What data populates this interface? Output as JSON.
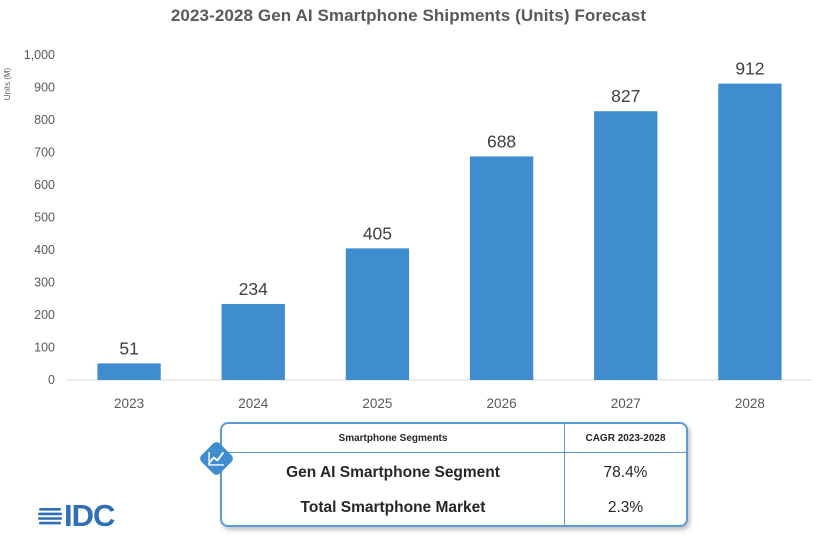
{
  "chart_data": {
    "type": "bar",
    "title": "2023-2028 Gen AI Smartphone Shipments (Units) Forecast",
    "ylabel": "Units (M)",
    "xlabel": "",
    "categories": [
      "2023",
      "2024",
      "2025",
      "2026",
      "2027",
      "2028"
    ],
    "values": [
      51,
      234,
      405,
      688,
      827,
      912
    ],
    "data_labels": [
      "51",
      "234",
      "405",
      "688",
      "827",
      "912"
    ],
    "ylim": [
      0,
      1000
    ],
    "yticks": [
      "0",
      "100",
      "200",
      "300",
      "400",
      "500",
      "600",
      "700",
      "800",
      "900",
      "1,000"
    ],
    "bar_color": "#3f8dcf",
    "grid": false,
    "legend": "none"
  },
  "table": {
    "header_segment": "Smartphone Segments",
    "header_cagr": "CAGR 2023-2028",
    "rows": [
      {
        "segment": "Gen AI Smartphone Segment",
        "cagr": "78.4%"
      },
      {
        "segment": "Total Smartphone Market",
        "cagr": "2.3%"
      }
    ],
    "border_color": "#5b9bd5",
    "badge_icon": "trend-line-icon",
    "badge_color": "#3f8dcf"
  },
  "logo": {
    "text": "IDC",
    "color": "#2f6fb5"
  }
}
